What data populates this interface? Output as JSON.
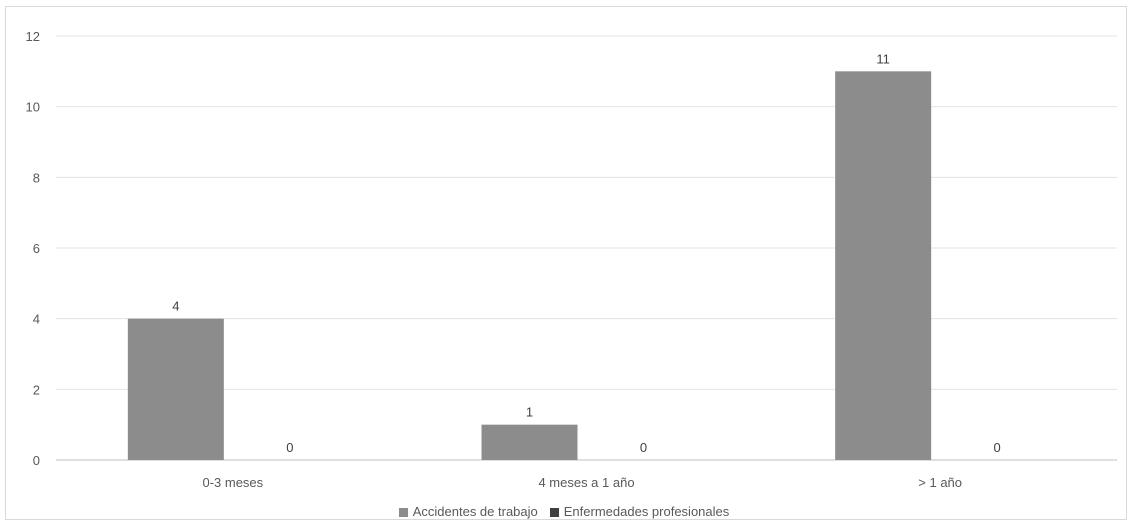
{
  "chart_data": {
    "type": "bar",
    "categories": [
      "0-3 meses",
      "4 meses a 1 año",
      "> 1 año"
    ],
    "series": [
      {
        "name": "Accidentes de trabajo",
        "values": [
          4,
          1,
          11
        ],
        "color": "#8c8c8c"
      },
      {
        "name": "Enfermedades profesionales",
        "values": [
          0,
          0,
          0
        ],
        "color": "#404040"
      }
    ],
    "ylim": [
      0,
      12
    ],
    "yticks": [
      0,
      2,
      4,
      6,
      8,
      10,
      12
    ],
    "grid": true,
    "legend_position": "bottom",
    "data_labels": true
  }
}
